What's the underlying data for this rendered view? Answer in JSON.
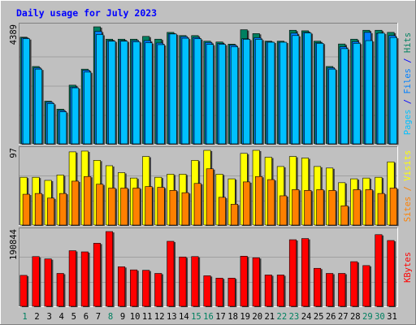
{
  "chart_data": {
    "type": "bar",
    "title": "Daily usage for July 2023",
    "categories": [
      "1",
      "2",
      "3",
      "4",
      "5",
      "6",
      "7",
      "8",
      "9",
      "10",
      "11",
      "12",
      "13",
      "14",
      "15",
      "16",
      "17",
      "18",
      "19",
      "20",
      "21",
      "22",
      "23",
      "24",
      "25",
      "26",
      "27",
      "28",
      "29",
      "30",
      "31"
    ],
    "weekend_days": [
      "1",
      "8",
      "15",
      "16",
      "22",
      "23",
      "29",
      "30"
    ],
    "panels": [
      {
        "id": "pages-files-hits",
        "ylabel_parts": [
          {
            "text": "Pages",
            "color": "#00c0ff"
          },
          {
            "text": " / ",
            "color": "#0000ff"
          },
          {
            "text": "Files",
            "color": "#0080ff"
          },
          {
            "text": " / ",
            "color": "#0000ff"
          },
          {
            "text": "Hits",
            "color": "#008060"
          }
        ],
        "ymax_label": "4389",
        "ymax": 4389,
        "series": [
          {
            "name": "Hits",
            "color": "#008060",
            "values": [
              4000,
              2900,
              1600,
              1300,
              2200,
              2800,
              4389,
              3925,
              3925,
              3925,
              4030,
              3925,
              4180,
              4060,
              4060,
              3850,
              3820,
              3740,
              4280,
              4135,
              3850,
              3850,
              4260,
              4240,
              3850,
              2900,
              3745,
              3925,
              4260,
              4260,
              4180
            ]
          },
          {
            "name": "Files",
            "color": "#0080ff",
            "values": [
              3970,
              2850,
              1560,
              1250,
              2130,
              2760,
              4220,
              3870,
              3870,
              3870,
              3870,
              3780,
              4130,
              4020,
              3990,
              3800,
              3760,
              3700,
              3940,
              3980,
              3820,
              3810,
              4150,
              4180,
              3790,
              2850,
              3640,
              3830,
              4180,
              4140,
              4060
            ]
          },
          {
            "name": "Pages",
            "color": "#00c0ff",
            "values": [
              3940,
              2800,
              1510,
              1200,
              2100,
              2690,
              4100,
              3850,
              3850,
              3830,
              3790,
              3720,
              4120,
              3960,
              3940,
              3730,
              3730,
              3640,
              3920,
              3920,
              3810,
              3810,
              4060,
              4160,
              3770,
              2800,
              3570,
              3770,
              3870,
              4150,
              3990
            ]
          }
        ]
      },
      {
        "id": "sites-visits",
        "ylabel_parts": [
          {
            "text": "Sites",
            "color": "#ff8000"
          },
          {
            "text": " / ",
            "color": "#ff8000"
          },
          {
            "text": "Visits",
            "color": "#ffff00"
          }
        ],
        "ymax_label": "97",
        "ymax": 97,
        "series": [
          {
            "name": "Visits",
            "color": "#ffff00",
            "values": [
              62,
              62,
              58,
              65,
              95,
              96,
              84,
              77,
              68,
              61,
              89,
              62,
              66,
              66,
              84,
              97,
              66,
              60,
              93,
              97,
              88,
              76,
              89,
              87,
              76,
              74,
              55,
              60,
              61,
              62,
              82
            ]
          },
          {
            "name": "Sites",
            "color": "#ff8000",
            "values": [
              40,
              41,
              35,
              41,
              57,
              63,
              53,
              48,
              48,
              48,
              50,
              49,
              45,
              42,
              54,
              73,
              36,
              27,
              56,
              63,
              59,
              38,
              46,
              45,
              46,
              45,
              25,
              46,
              46,
              41,
              48
            ]
          }
        ]
      },
      {
        "id": "kbytes",
        "ylabel_parts": [
          {
            "text": "KBytes",
            "color": "#ff0000"
          }
        ],
        "ymax_label": "190844",
        "ymax": 190844,
        "series": [
          {
            "name": "KBytes",
            "color": "#ff0000",
            "values": [
              79000,
              127000,
              121000,
              84000,
              142000,
              139000,
              161000,
              190844,
              101000,
              93000,
              92000,
              84000,
              166000,
              126000,
              127000,
              78000,
              72000,
              72000,
              128000,
              124000,
              80000,
              80000,
              170000,
              173000,
              97000,
              84000,
              84000,
              114000,
              104000,
              183000,
              168000
            ]
          }
        ]
      }
    ]
  }
}
